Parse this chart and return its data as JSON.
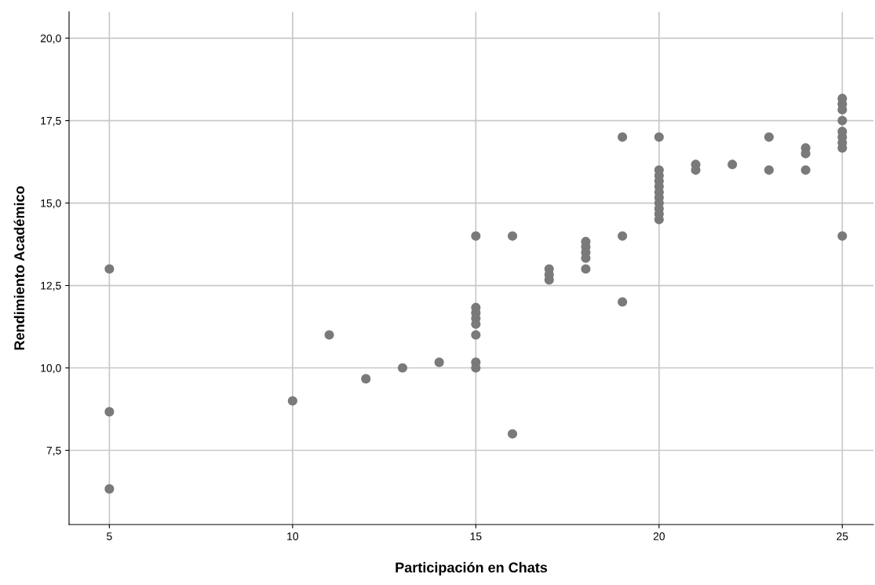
{
  "chart_data": {
    "type": "scatter",
    "xlabel": "Participación en Chats",
    "ylabel": "Rendimiento Académico",
    "series": [
      {
        "color": "#7a7a7a",
        "x": [
          5,
          5,
          5,
          10,
          11,
          12,
          13,
          14,
          15,
          15,
          15,
          15,
          15,
          15,
          15,
          15,
          16,
          16,
          17,
          17,
          17,
          18,
          18,
          18,
          18,
          18,
          19,
          19,
          19,
          20,
          20,
          20,
          20,
          20,
          20,
          20,
          20,
          20,
          20,
          20,
          21,
          21,
          22,
          23,
          23,
          24,
          24,
          24,
          25,
          25,
          25,
          25,
          25,
          25,
          25,
          25,
          25
        ],
        "values": [
          13.0,
          8.67,
          6.33,
          9.0,
          11.0,
          9.67,
          10.0,
          10.17,
          14.0,
          11.83,
          11.67,
          11.5,
          11.33,
          11.0,
          10.17,
          10.0,
          14.0,
          8.0,
          13.0,
          12.83,
          12.67,
          13.83,
          13.67,
          13.5,
          13.33,
          13.0,
          17.0,
          14.0,
          12.0,
          17.0,
          16.0,
          15.83,
          15.67,
          15.5,
          15.33,
          15.17,
          15.0,
          14.83,
          14.67,
          14.5,
          16.17,
          16.0,
          16.17,
          17.0,
          16.0,
          16.67,
          16.5,
          16.0,
          18.17,
          18.0,
          17.83,
          17.5,
          17.17,
          17.0,
          16.83,
          16.67,
          14.0
        ]
      }
    ],
    "xlim": [
      3.9,
      25.85
    ],
    "xticks": [
      5,
      10,
      15,
      20,
      25
    ],
    "ylim": [
      5.25,
      20.8
    ],
    "yticks": [
      {
        "value": 7.5,
        "label": "7,5"
      },
      {
        "value": 10,
        "label": "10,0"
      },
      {
        "value": 12.5,
        "label": "12,5"
      },
      {
        "value": 15,
        "label": "15,0"
      },
      {
        "value": 17.5,
        "label": "17,5"
      },
      {
        "value": 20,
        "label": "20,0"
      }
    ],
    "grid": true,
    "marker": "circle",
    "legend": false
  }
}
